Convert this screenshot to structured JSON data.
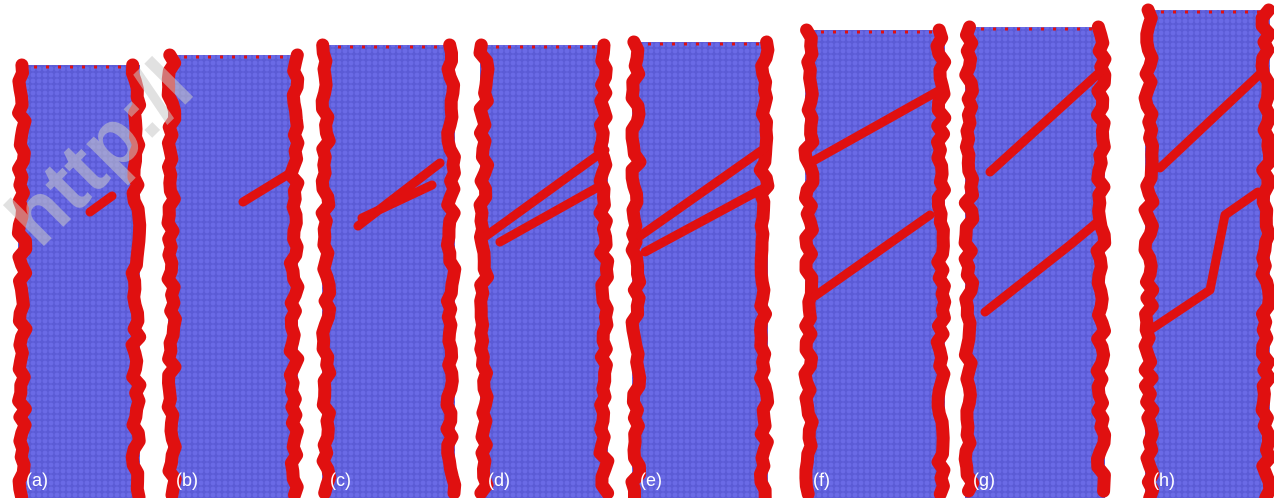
{
  "panels": [
    {
      "label": "(a)"
    },
    {
      "label": "(b)"
    },
    {
      "label": "(c)"
    },
    {
      "label": "(d)"
    },
    {
      "label": "(e)"
    },
    {
      "label": "(f)"
    },
    {
      "label": "(g)"
    },
    {
      "label": "(h)"
    }
  ],
  "watermark": "http:/l"
}
